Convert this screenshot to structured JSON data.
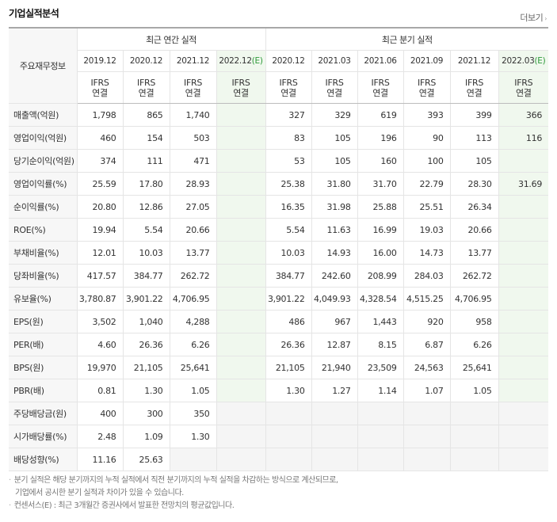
{
  "header": {
    "title": "기업실적분석",
    "more_label": "더보기",
    "more_arrow": "›"
  },
  "table": {
    "label_header": "주요재무정보",
    "group_annual": "최근 연간 실적",
    "group_quarter": "최근 분기 실적",
    "annual_periods": [
      {
        "label": "2019.12",
        "estimate": ""
      },
      {
        "label": "2020.12",
        "estimate": ""
      },
      {
        "label": "2021.12",
        "estimate": ""
      },
      {
        "label": "2022.12",
        "estimate": "(E)"
      }
    ],
    "quarter_periods": [
      {
        "label": "2020.12",
        "estimate": ""
      },
      {
        "label": "2021.03",
        "estimate": ""
      },
      {
        "label": "2021.06",
        "estimate": ""
      },
      {
        "label": "2021.09",
        "estimate": ""
      },
      {
        "label": "2021.12",
        "estimate": ""
      },
      {
        "label": "2022.03",
        "estimate": "(E)"
      }
    ],
    "ifrs_line1": "IFRS",
    "ifrs_line2": "연결",
    "rows": [
      {
        "label": "매출액(억원)",
        "values": [
          "1,798",
          "865",
          "1,740",
          "",
          "327",
          "329",
          "619",
          "393",
          "399",
          "366"
        ],
        "group_end": false
      },
      {
        "label": "영업이익(억원)",
        "values": [
          "460",
          "154",
          "503",
          "",
          "83",
          "105",
          "196",
          "90",
          "113",
          "116"
        ],
        "group_end": false
      },
      {
        "label": "당기순이익(억원)",
        "values": [
          "374",
          "111",
          "471",
          "",
          "53",
          "105",
          "160",
          "100",
          "105",
          ""
        ],
        "group_end": true
      },
      {
        "label": "영업이익률(%)",
        "values": [
          "25.59",
          "17.80",
          "28.93",
          "",
          "25.38",
          "31.80",
          "31.70",
          "22.79",
          "28.30",
          "31.69"
        ],
        "group_end": false
      },
      {
        "label": "순이익률(%)",
        "values": [
          "20.80",
          "12.86",
          "27.05",
          "",
          "16.35",
          "31.98",
          "25.88",
          "25.51",
          "26.34",
          ""
        ],
        "group_end": false
      },
      {
        "label": "ROE(%)",
        "values": [
          "19.94",
          "5.54",
          "20.66",
          "",
          "5.54",
          "11.63",
          "16.99",
          "19.03",
          "20.66",
          ""
        ],
        "group_end": true
      },
      {
        "label": "부채비율(%)",
        "values": [
          "12.01",
          "10.03",
          "13.77",
          "",
          "10.03",
          "14.93",
          "16.00",
          "14.73",
          "13.77",
          ""
        ],
        "group_end": false
      },
      {
        "label": "당좌비율(%)",
        "values": [
          "417.57",
          "384.77",
          "262.72",
          "",
          "384.77",
          "242.60",
          "208.99",
          "284.03",
          "262.72",
          ""
        ],
        "group_end": false
      },
      {
        "label": "유보율(%)",
        "values": [
          "3,780.87",
          "3,901.22",
          "4,706.95",
          "",
          "3,901.22",
          "4,049.93",
          "4,328.54",
          "4,515.25",
          "4,706.95",
          ""
        ],
        "group_end": true
      },
      {
        "label": "EPS(원)",
        "values": [
          "3,502",
          "1,040",
          "4,288",
          "",
          "486",
          "967",
          "1,443",
          "920",
          "958",
          ""
        ],
        "group_end": false
      },
      {
        "label": "PER(배)",
        "values": [
          "4.60",
          "26.36",
          "6.26",
          "",
          "26.36",
          "12.87",
          "8.15",
          "6.87",
          "6.26",
          ""
        ],
        "group_end": false
      },
      {
        "label": "BPS(원)",
        "values": [
          "19,970",
          "21,105",
          "25,641",
          "",
          "21,105",
          "21,940",
          "23,509",
          "24,563",
          "25,641",
          ""
        ],
        "group_end": false
      },
      {
        "label": "PBR(배)",
        "values": [
          "0.81",
          "1.30",
          "1.05",
          "",
          "1.30",
          "1.27",
          "1.14",
          "1.07",
          "1.05",
          ""
        ],
        "group_end": true
      },
      {
        "label": "주당배당금(원)",
        "values": [
          "400",
          "300",
          "350",
          "",
          "",
          "",
          "",
          "",
          "",
          ""
        ],
        "group_end": false,
        "quarter_empty": true
      },
      {
        "label": "시가배당률(%)",
        "values": [
          "2.48",
          "1.09",
          "1.30",
          "",
          "",
          "",
          "",
          "",
          "",
          ""
        ],
        "group_end": false,
        "quarter_empty": true
      },
      {
        "label": "배당성향(%)",
        "values": [
          "11.16",
          "25.63",
          "",
          "",
          "",
          "",
          "",
          "",
          "",
          ""
        ],
        "group_end": true,
        "quarter_empty": true,
        "annual_empty_from": 2
      }
    ]
  },
  "notes": [
    "분기 실적은 해당 분기까지의 누적 실적에서 직전 분기까지의 누적 실적을 차감하는 방식으로 계산되므로,",
    "기업에서 공시한 분기 실적과 차이가 있을 수 있습니다.",
    "컨센서스(E) : 최근 3개월간 증권사에서 발표한 전망치의 평균값입니다."
  ],
  "colors": {
    "ifrs_orange": "#e6702b",
    "estimate_green": "#2e9a3a",
    "estimate_bg": "#f0f8ee"
  }
}
